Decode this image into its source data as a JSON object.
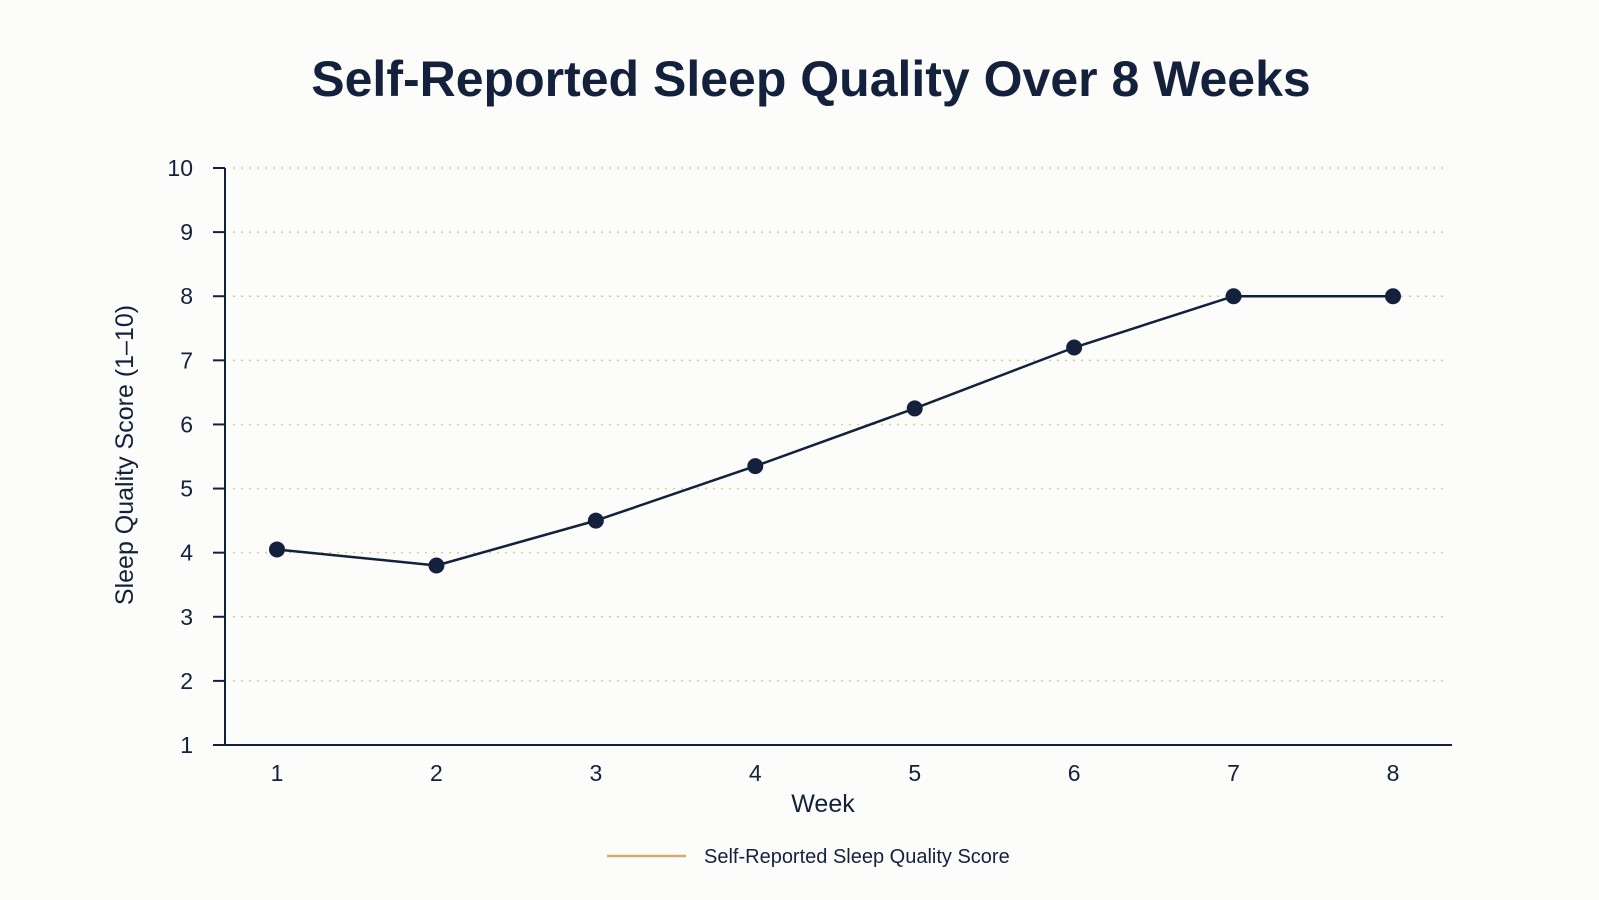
{
  "chart_data": {
    "type": "line",
    "title": "Self-Reported Sleep Quality Over 8 Weeks",
    "xlabel": "Week",
    "ylabel": "Sleep Quality Score (1–10)",
    "x": [
      1,
      2,
      3,
      4,
      5,
      6,
      7,
      8
    ],
    "x_tick_labels": [
      "1",
      "2",
      "3",
      "4",
      "5",
      "6",
      "7",
      "8"
    ],
    "y_ticks": [
      1,
      2,
      3,
      4,
      5,
      6,
      7,
      8,
      9,
      10
    ],
    "y_tick_labels": [
      "1",
      "2",
      "3",
      "4",
      "5",
      "6",
      "7",
      "8",
      "9",
      "10"
    ],
    "ylim": [
      1,
      10
    ],
    "xlim": [
      1,
      8
    ],
    "grid": "horizontal dotted",
    "legend_position": "bottom-center",
    "series": [
      {
        "name": "Self-Reported Sleep Quality Score",
        "values": [
          4.05,
          3.8,
          4.5,
          5.35,
          6.25,
          7.2,
          8.0,
          8.0
        ],
        "line_color": "#14213d",
        "legend_color": "#d9a86c"
      }
    ]
  }
}
